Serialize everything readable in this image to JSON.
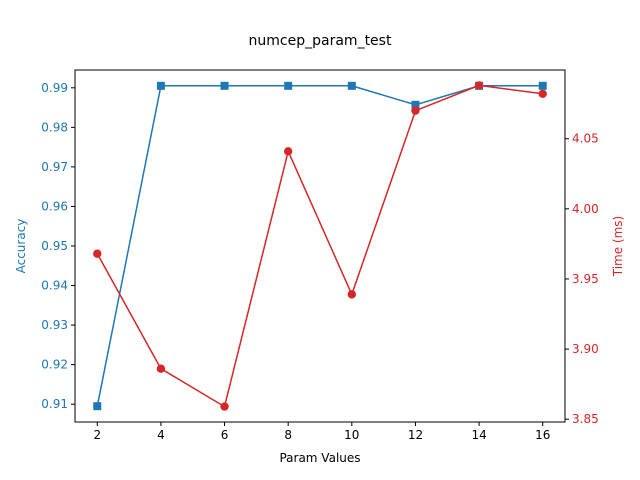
{
  "chart_data": {
    "type": "line",
    "title": "numcep_param_test",
    "xlabel": "Param Values",
    "x": [
      2,
      4,
      6,
      8,
      10,
      12,
      14,
      16
    ],
    "x_ticks": [
      "2",
      "4",
      "6",
      "8",
      "10",
      "12",
      "14",
      "16"
    ],
    "xlim": [
      1.3,
      16.7
    ],
    "series": [
      {
        "axis": "left",
        "color": "#1f77b4",
        "marker": "square",
        "values": [
          0.9095,
          0.9905,
          0.9905,
          0.9905,
          0.9905,
          0.9857,
          0.9905,
          0.9905
        ]
      },
      {
        "axis": "right",
        "color": "#d62728",
        "marker": "circle",
        "values": [
          3.968,
          3.886,
          3.859,
          4.041,
          3.939,
          4.07,
          4.088,
          4.082
        ]
      }
    ],
    "y_left": {
      "label": "Accuracy",
      "color": "#1f77b4",
      "lim": [
        0.9055,
        0.9945
      ],
      "ticks": [
        "0.91",
        "0.92",
        "0.93",
        "0.94",
        "0.95",
        "0.96",
        "0.97",
        "0.98",
        "0.99"
      ]
    },
    "y_right": {
      "label": "Time (ms)",
      "color": "#d62728",
      "lim": [
        3.848,
        4.099
      ],
      "ticks": [
        "3.85",
        "3.90",
        "3.95",
        "4.00",
        "4.05"
      ]
    },
    "grid": false,
    "legend": false
  }
}
